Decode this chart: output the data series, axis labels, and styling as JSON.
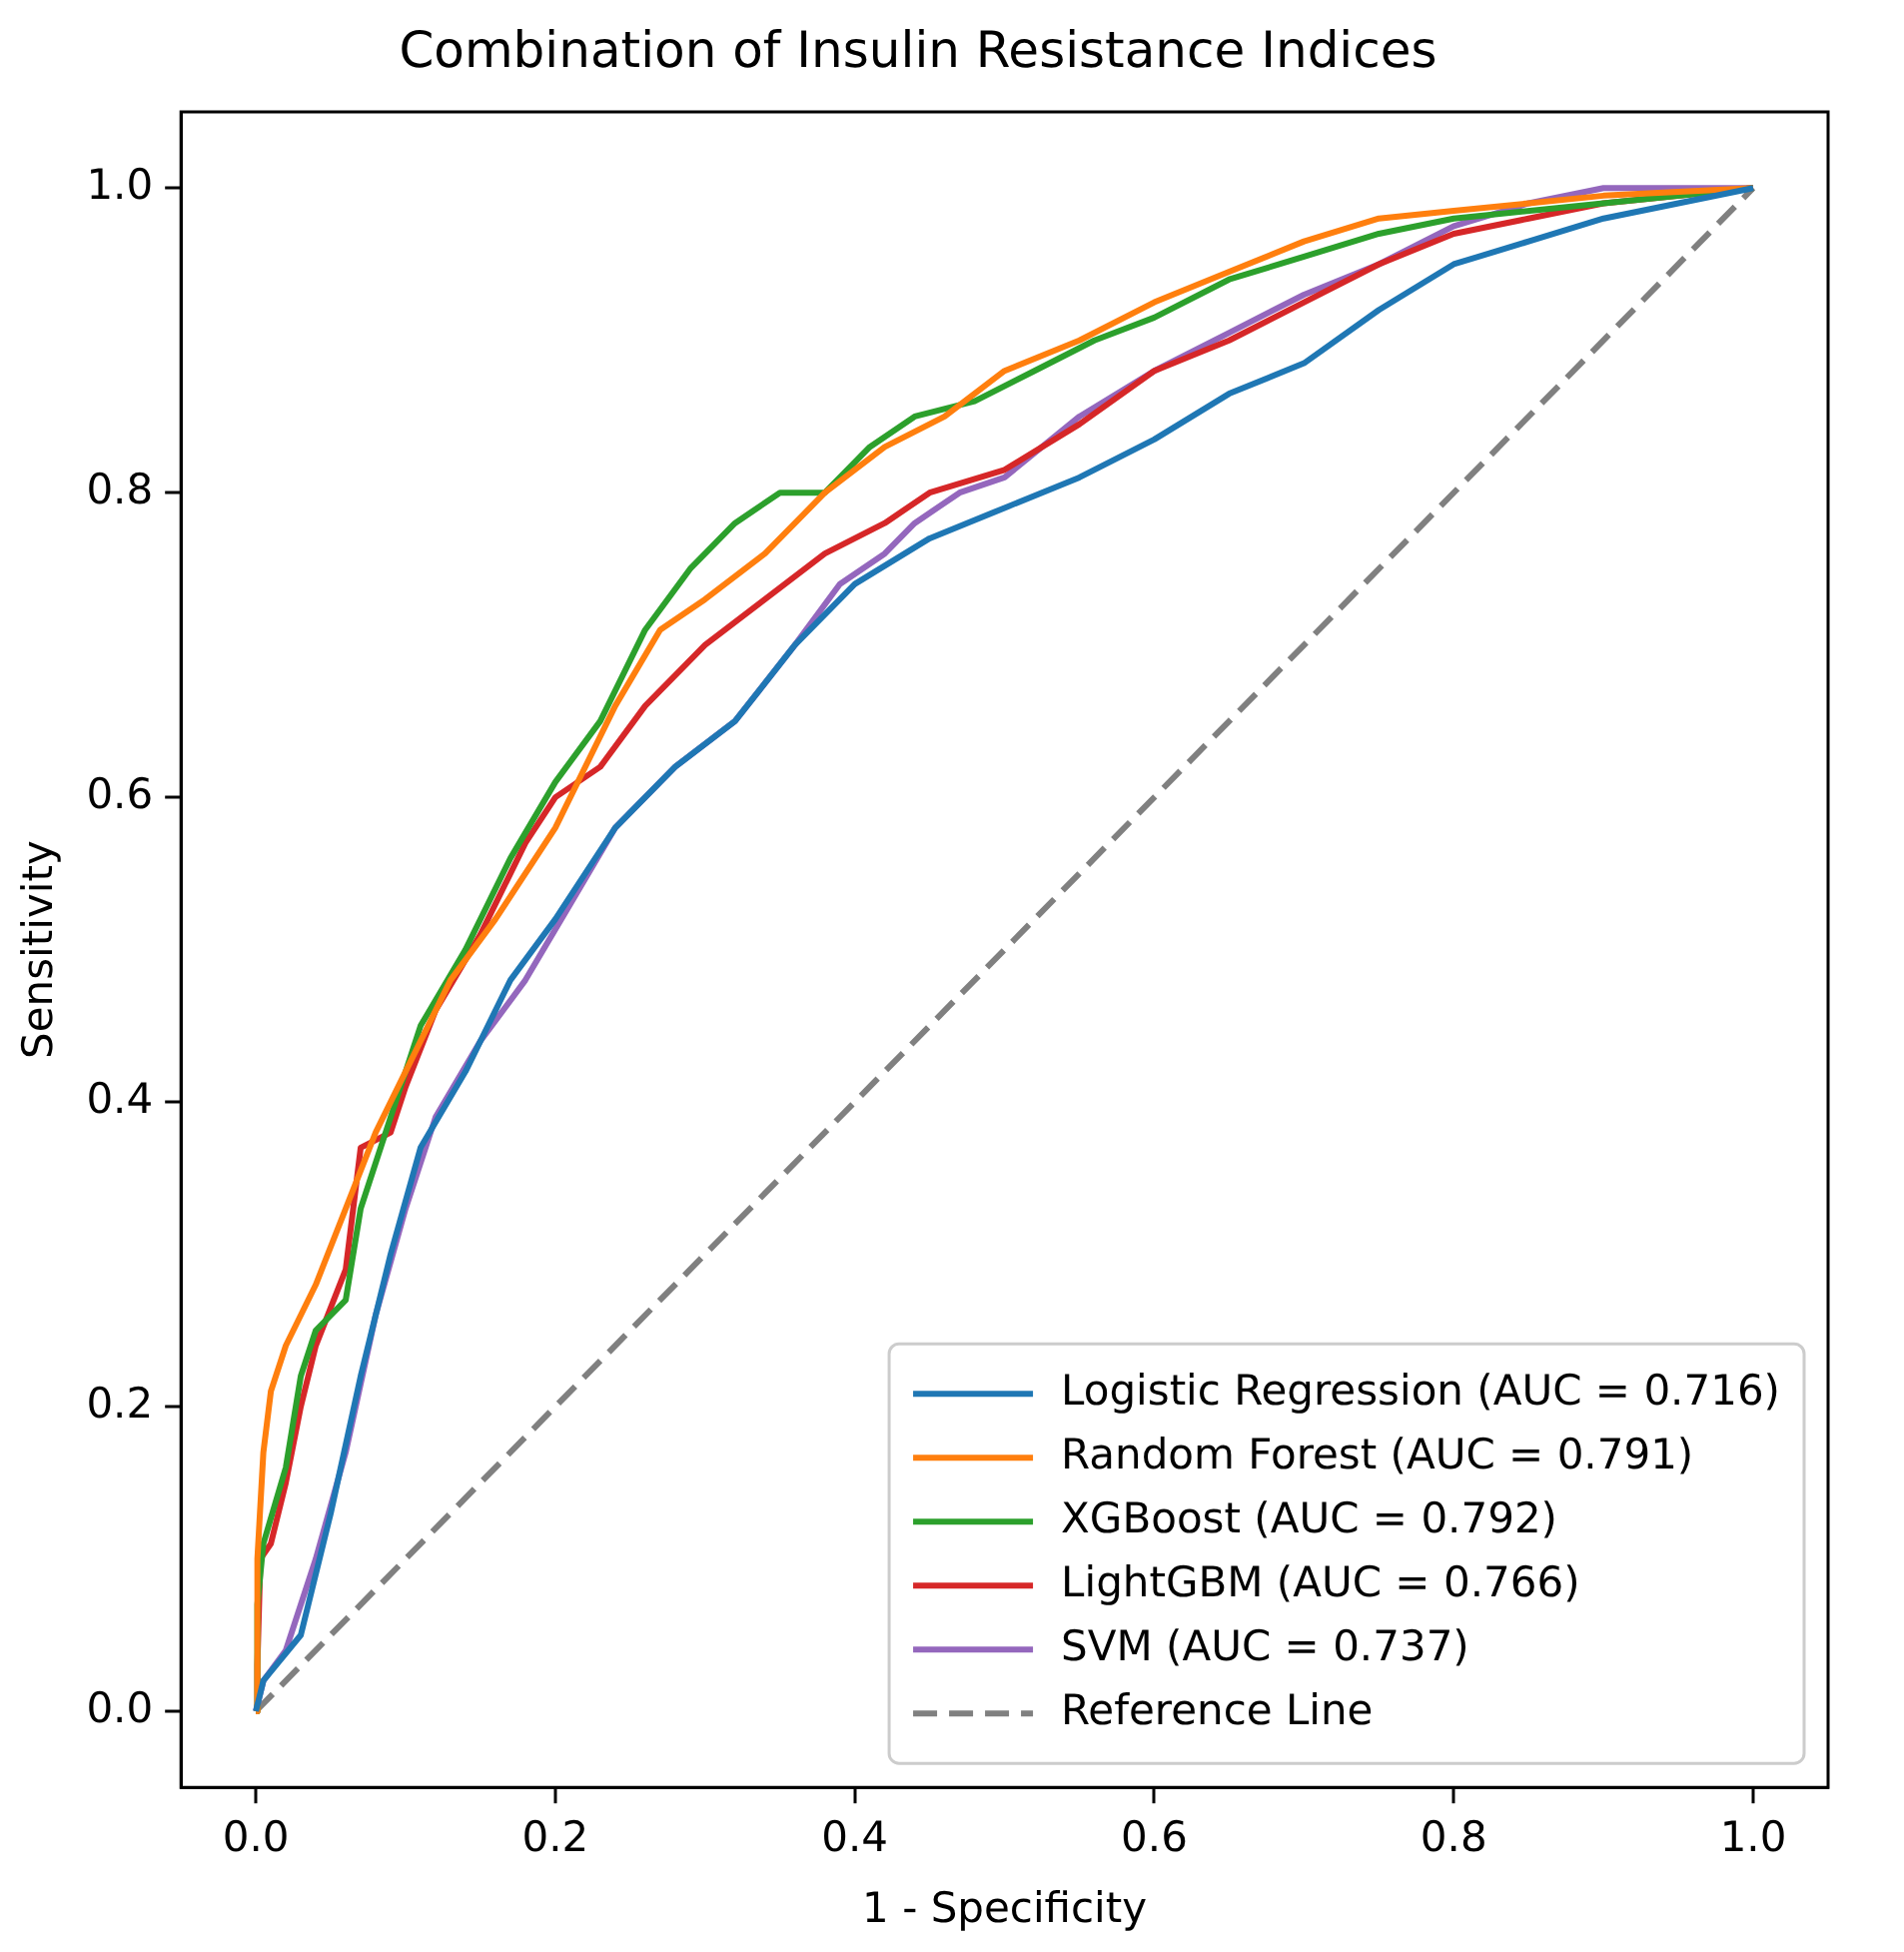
{
  "chart_data": {
    "type": "line",
    "title": "Combination of Insulin Resistance Indices",
    "xlabel": "1 - Specificity",
    "ylabel": "Sensitivity",
    "xlim": [
      -0.05,
      1.05
    ],
    "ylim": [
      -0.05,
      1.05
    ],
    "xticks": [
      {
        "value": 0,
        "label": "0.0"
      },
      {
        "value": 0.2,
        "label": "0.2"
      },
      {
        "value": 0.4,
        "label": "0.4"
      },
      {
        "value": 0.6,
        "label": "0.6"
      },
      {
        "value": 0.8,
        "label": "0.8"
      },
      {
        "value": 1,
        "label": "1.0"
      }
    ],
    "yticks": [
      {
        "value": 0,
        "label": "0.0"
      },
      {
        "value": 0.2,
        "label": "0.2"
      },
      {
        "value": 0.4,
        "label": "0.4"
      },
      {
        "value": 0.6,
        "label": "0.6"
      },
      {
        "value": 0.8,
        "label": "0.8"
      },
      {
        "value": 1,
        "label": "1.0"
      }
    ],
    "grid": false,
    "legend": "bottom right",
    "marker": "none",
    "series": [
      {
        "name": "Logistic Regression (AUC = 0.716)",
        "color": "#1f77b4",
        "x": [
          0,
          0.005,
          0.03,
          0.05,
          0.07,
          0.09,
          0.11,
          0.14,
          0.17,
          0.2,
          0.24,
          0.28,
          0.32,
          0.36,
          0.4,
          0.45,
          0.5,
          0.55,
          0.6,
          0.65,
          0.7,
          0.75,
          0.8,
          0.85,
          0.9,
          0.95,
          1
        ],
        "values": [
          0,
          0.02,
          0.05,
          0.13,
          0.22,
          0.3,
          0.37,
          0.42,
          0.48,
          0.52,
          0.58,
          0.62,
          0.65,
          0.7,
          0.74,
          0.77,
          0.79,
          0.81,
          0.835,
          0.865,
          0.885,
          0.92,
          0.95,
          0.965,
          0.98,
          0.99,
          1
        ]
      },
      {
        "name": "Random Forest (AUC = 0.791)",
        "color": "#ff7f0e",
        "x": [
          0,
          0.001,
          0.005,
          0.01,
          0.02,
          0.04,
          0.06,
          0.08,
          0.1,
          0.13,
          0.16,
          0.2,
          0.24,
          0.27,
          0.3,
          0.34,
          0.38,
          0.42,
          0.46,
          0.5,
          0.55,
          0.6,
          0.65,
          0.7,
          0.75,
          0.8,
          0.85,
          0.9,
          1
        ],
        "values": [
          0,
          0.1,
          0.17,
          0.21,
          0.24,
          0.28,
          0.33,
          0.38,
          0.42,
          0.48,
          0.52,
          0.58,
          0.66,
          0.71,
          0.73,
          0.76,
          0.8,
          0.83,
          0.85,
          0.88,
          0.9,
          0.925,
          0.945,
          0.965,
          0.98,
          0.985,
          0.99,
          0.995,
          1
        ]
      },
      {
        "name": "XGBoost (AUC = 0.792)",
        "color": "#2ca02c",
        "x": [
          0,
          0.001,
          0.005,
          0.02,
          0.03,
          0.04,
          0.06,
          0.07,
          0.09,
          0.11,
          0.14,
          0.17,
          0.2,
          0.23,
          0.26,
          0.29,
          0.32,
          0.35,
          0.38,
          0.41,
          0.44,
          0.48,
          0.52,
          0.56,
          0.6,
          0.65,
          0.7,
          0.75,
          0.8,
          0.9,
          1
        ],
        "values": [
          0,
          0.07,
          0.11,
          0.16,
          0.22,
          0.25,
          0.27,
          0.33,
          0.39,
          0.45,
          0.5,
          0.56,
          0.61,
          0.65,
          0.71,
          0.75,
          0.78,
          0.8,
          0.8,
          0.83,
          0.85,
          0.86,
          0.88,
          0.9,
          0.915,
          0.94,
          0.955,
          0.97,
          0.98,
          0.99,
          1
        ]
      },
      {
        "name": "LightGBM (AUC = 0.766)",
        "color": "#d62728",
        "x": [
          0,
          0.001,
          0.003,
          0.01,
          0.02,
          0.03,
          0.04,
          0.06,
          0.07,
          0.09,
          0.1,
          0.12,
          0.15,
          0.18,
          0.2,
          0.23,
          0.26,
          0.3,
          0.34,
          0.38,
          0.42,
          0.45,
          0.5,
          0.55,
          0.6,
          0.65,
          0.7,
          0.75,
          0.8,
          0.85,
          0.9,
          1
        ],
        "values": [
          0,
          0.03,
          0.1,
          0.11,
          0.15,
          0.2,
          0.24,
          0.29,
          0.37,
          0.38,
          0.41,
          0.46,
          0.51,
          0.57,
          0.6,
          0.62,
          0.66,
          0.7,
          0.73,
          0.76,
          0.78,
          0.8,
          0.815,
          0.845,
          0.88,
          0.9,
          0.925,
          0.95,
          0.97,
          0.98,
          0.99,
          1
        ]
      },
      {
        "name": "SVM (AUC = 0.737)",
        "color": "#9467bd",
        "x": [
          0,
          0.005,
          0.02,
          0.04,
          0.06,
          0.08,
          0.1,
          0.12,
          0.15,
          0.18,
          0.21,
          0.24,
          0.28,
          0.32,
          0.36,
          0.39,
          0.42,
          0.44,
          0.47,
          0.5,
          0.55,
          0.6,
          0.65,
          0.7,
          0.75,
          0.8,
          0.85,
          0.9,
          1
        ],
        "values": [
          0,
          0.02,
          0.04,
          0.1,
          0.17,
          0.26,
          0.33,
          0.39,
          0.44,
          0.48,
          0.53,
          0.58,
          0.62,
          0.65,
          0.7,
          0.74,
          0.76,
          0.78,
          0.8,
          0.81,
          0.85,
          0.88,
          0.905,
          0.93,
          0.95,
          0.975,
          0.99,
          1,
          1
        ]
      },
      {
        "name": "Reference Line",
        "color": "#808080",
        "line_style": "dashed",
        "x": [
          0,
          1
        ],
        "values": [
          0,
          1
        ]
      }
    ]
  }
}
